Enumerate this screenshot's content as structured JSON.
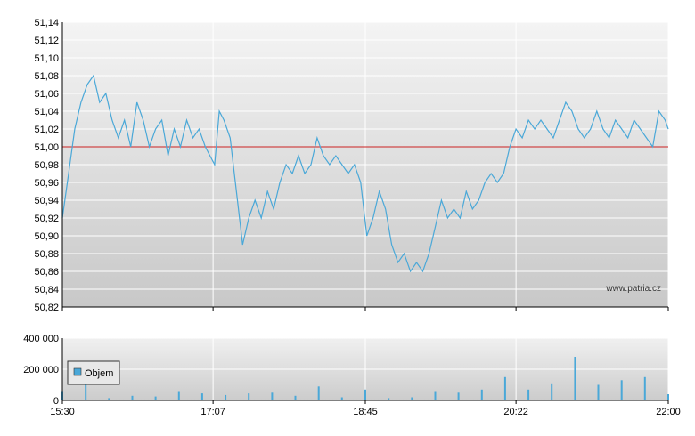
{
  "chart_data": [
    {
      "type": "line",
      "title": "",
      "xlabel": "",
      "ylabel": "",
      "xlim": [
        "15:30",
        "22:00"
      ],
      "ylim": [
        50.82,
        51.14
      ],
      "y_ticks": [
        "51,14",
        "51,12",
        "51,10",
        "51,08",
        "51,06",
        "51,04",
        "51,02",
        "51,00",
        "50,98",
        "50,96",
        "50,94",
        "50,92",
        "50,90",
        "50,88",
        "50,86",
        "50,84",
        "50,82"
      ],
      "reference_line": {
        "value": 51.0,
        "color": "#cc2222"
      },
      "grid": true,
      "line_color": "#4aa8d8",
      "watermark": "www.patria.cz",
      "series": [
        {
          "points": [
            [
              "15:30",
              50.92
            ],
            [
              "15:34",
              50.97
            ],
            [
              "15:38",
              51.02
            ],
            [
              "15:42",
              51.05
            ],
            [
              "15:46",
              51.07
            ],
            [
              "15:50",
              51.08
            ],
            [
              "15:54",
              51.05
            ],
            [
              "15:58",
              51.06
            ],
            [
              "16:02",
              51.03
            ],
            [
              "16:06",
              51.01
            ],
            [
              "16:10",
              51.03
            ],
            [
              "16:14",
              51.0
            ],
            [
              "16:18",
              51.05
            ],
            [
              "16:22",
              51.03
            ],
            [
              "16:26",
              51.0
            ],
            [
              "16:30",
              51.02
            ],
            [
              "16:34",
              51.03
            ],
            [
              "16:38",
              50.99
            ],
            [
              "16:42",
              51.02
            ],
            [
              "16:46",
              51.0
            ],
            [
              "16:50",
              51.03
            ],
            [
              "16:54",
              51.01
            ],
            [
              "16:58",
              51.02
            ],
            [
              "17:02",
              51.0
            ],
            [
              "17:05",
              50.99
            ],
            [
              "17:08",
              50.98
            ],
            [
              "17:11",
              51.04
            ],
            [
              "17:14",
              51.03
            ],
            [
              "17:18",
              51.01
            ],
            [
              "17:22",
              50.95
            ],
            [
              "17:26",
              50.89
            ],
            [
              "17:30",
              50.92
            ],
            [
              "17:34",
              50.94
            ],
            [
              "17:38",
              50.92
            ],
            [
              "17:42",
              50.95
            ],
            [
              "17:46",
              50.93
            ],
            [
              "17:50",
              50.96
            ],
            [
              "17:54",
              50.98
            ],
            [
              "17:58",
              50.97
            ],
            [
              "18:02",
              50.99
            ],
            [
              "18:06",
              50.97
            ],
            [
              "18:10",
              50.98
            ],
            [
              "18:14",
              51.01
            ],
            [
              "18:18",
              50.99
            ],
            [
              "18:22",
              50.98
            ],
            [
              "18:26",
              50.99
            ],
            [
              "18:30",
              50.98
            ],
            [
              "18:34",
              50.97
            ],
            [
              "18:38",
              50.98
            ],
            [
              "18:42",
              50.96
            ],
            [
              "18:46",
              50.9
            ],
            [
              "18:50",
              50.92
            ],
            [
              "18:54",
              50.95
            ],
            [
              "18:58",
              50.93
            ],
            [
              "19:02",
              50.89
            ],
            [
              "19:06",
              50.87
            ],
            [
              "19:10",
              50.88
            ],
            [
              "19:14",
              50.86
            ],
            [
              "19:18",
              50.87
            ],
            [
              "19:22",
              50.86
            ],
            [
              "19:26",
              50.88
            ],
            [
              "19:30",
              50.91
            ],
            [
              "19:34",
              50.94
            ],
            [
              "19:38",
              50.92
            ],
            [
              "19:42",
              50.93
            ],
            [
              "19:46",
              50.92
            ],
            [
              "19:50",
              50.95
            ],
            [
              "19:54",
              50.93
            ],
            [
              "19:58",
              50.94
            ],
            [
              "20:02",
              50.96
            ],
            [
              "20:06",
              50.97
            ],
            [
              "20:10",
              50.96
            ],
            [
              "20:14",
              50.97
            ],
            [
              "20:18",
              51.0
            ],
            [
              "20:22",
              51.02
            ],
            [
              "20:26",
              51.01
            ],
            [
              "20:30",
              51.03
            ],
            [
              "20:34",
              51.02
            ],
            [
              "20:38",
              51.03
            ],
            [
              "20:42",
              51.02
            ],
            [
              "20:46",
              51.01
            ],
            [
              "20:50",
              51.03
            ],
            [
              "20:54",
              51.05
            ],
            [
              "20:58",
              51.04
            ],
            [
              "21:02",
              51.02
            ],
            [
              "21:06",
              51.01
            ],
            [
              "21:10",
              51.02
            ],
            [
              "21:14",
              51.04
            ],
            [
              "21:18",
              51.02
            ],
            [
              "21:22",
              51.01
            ],
            [
              "21:26",
              51.03
            ],
            [
              "21:30",
              51.02
            ],
            [
              "21:34",
              51.01
            ],
            [
              "21:38",
              51.03
            ],
            [
              "21:42",
              51.02
            ],
            [
              "21:46",
              51.01
            ],
            [
              "21:50",
              51.0
            ],
            [
              "21:54",
              51.04
            ],
            [
              "21:58",
              51.03
            ],
            [
              "22:00",
              51.02
            ]
          ]
        }
      ],
      "x_ticks": [
        "15:30",
        "17:07",
        "18:45",
        "20:22",
        "22:00"
      ]
    },
    {
      "type": "bar",
      "title": "",
      "xlabel": "",
      "ylabel": "",
      "xlim": [
        "15:30",
        "22:00"
      ],
      "ylim": [
        0,
        400000
      ],
      "y_ticks": [
        "400 000",
        "200 000",
        "0"
      ],
      "grid": true,
      "bar_color": "#4aa8d8",
      "legend": {
        "label": "Objem",
        "position": "top-left"
      },
      "series": [
        {
          "name": "Objem",
          "points": [
            [
              "15:30",
              60000
            ],
            [
              "15:45",
              140000
            ],
            [
              "16:00",
              15000
            ],
            [
              "16:15",
              30000
            ],
            [
              "16:30",
              25000
            ],
            [
              "16:45",
              60000
            ],
            [
              "17:00",
              45000
            ],
            [
              "17:15",
              35000
            ],
            [
              "17:30",
              45000
            ],
            [
              "17:45",
              50000
            ],
            [
              "18:00",
              30000
            ],
            [
              "18:15",
              90000
            ],
            [
              "18:30",
              20000
            ],
            [
              "18:45",
              70000
            ],
            [
              "19:00",
              15000
            ],
            [
              "19:15",
              20000
            ],
            [
              "19:30",
              60000
            ],
            [
              "19:45",
              50000
            ],
            [
              "20:00",
              70000
            ],
            [
              "20:15",
              150000
            ],
            [
              "20:30",
              70000
            ],
            [
              "20:45",
              110000
            ],
            [
              "21:00",
              280000
            ],
            [
              "21:15",
              100000
            ],
            [
              "21:30",
              130000
            ],
            [
              "21:45",
              150000
            ],
            [
              "22:00",
              40000
            ]
          ]
        }
      ],
      "x_ticks": [
        "15:30",
        "17:07",
        "18:45",
        "20:22",
        "22:00"
      ]
    }
  ]
}
